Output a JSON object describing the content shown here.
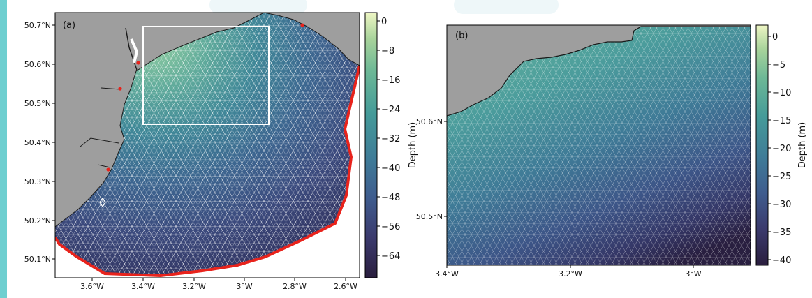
{
  "panel_a": {
    "label": "(a)",
    "lat_ticks": [
      "50.7°N",
      "50.6°N",
      "50.5°N",
      "50.4°N",
      "50.3°N",
      "50.2°N",
      "50.1°N"
    ],
    "lon_ticks": [
      "3.6°W",
      "3.4°W",
      "3.2°W",
      "3°W",
      "2.8°W",
      "2.6°W"
    ],
    "colorbar_ticks": [
      "0",
      "−8",
      "−16",
      "−24",
      "−32",
      "−40",
      "−48",
      "−56",
      "−64"
    ],
    "colorbar_label": "Depth (m)",
    "depth_range_m": [
      -70,
      2
    ]
  },
  "panel_b": {
    "label": "(b)",
    "lat_ticks": [
      "50.6°N",
      "50.5°N"
    ],
    "lon_ticks": [
      "3.4°W",
      "3.2°W",
      "3°W"
    ],
    "colorbar_ticks": [
      "0",
      "−5",
      "−10",
      "−15",
      "−20",
      "−25",
      "−30",
      "−35",
      "−40"
    ],
    "colorbar_label": "Depth (m)",
    "depth_range_m": [
      -41,
      2
    ]
  },
  "colors": {
    "land": "#9e9e9e",
    "coastline": "#1a1a1a",
    "open_boundary": "#e8231c",
    "mesh": "#ffffff",
    "zoom_box": "#ffffff",
    "station_marker": "#e8231c",
    "colormap": [
      "#2a1e3e",
      "#3b3a6d",
      "#3f5c8e",
      "#3f7c98",
      "#459b99",
      "#6db896",
      "#a8d39b",
      "#eef6c4"
    ]
  }
}
